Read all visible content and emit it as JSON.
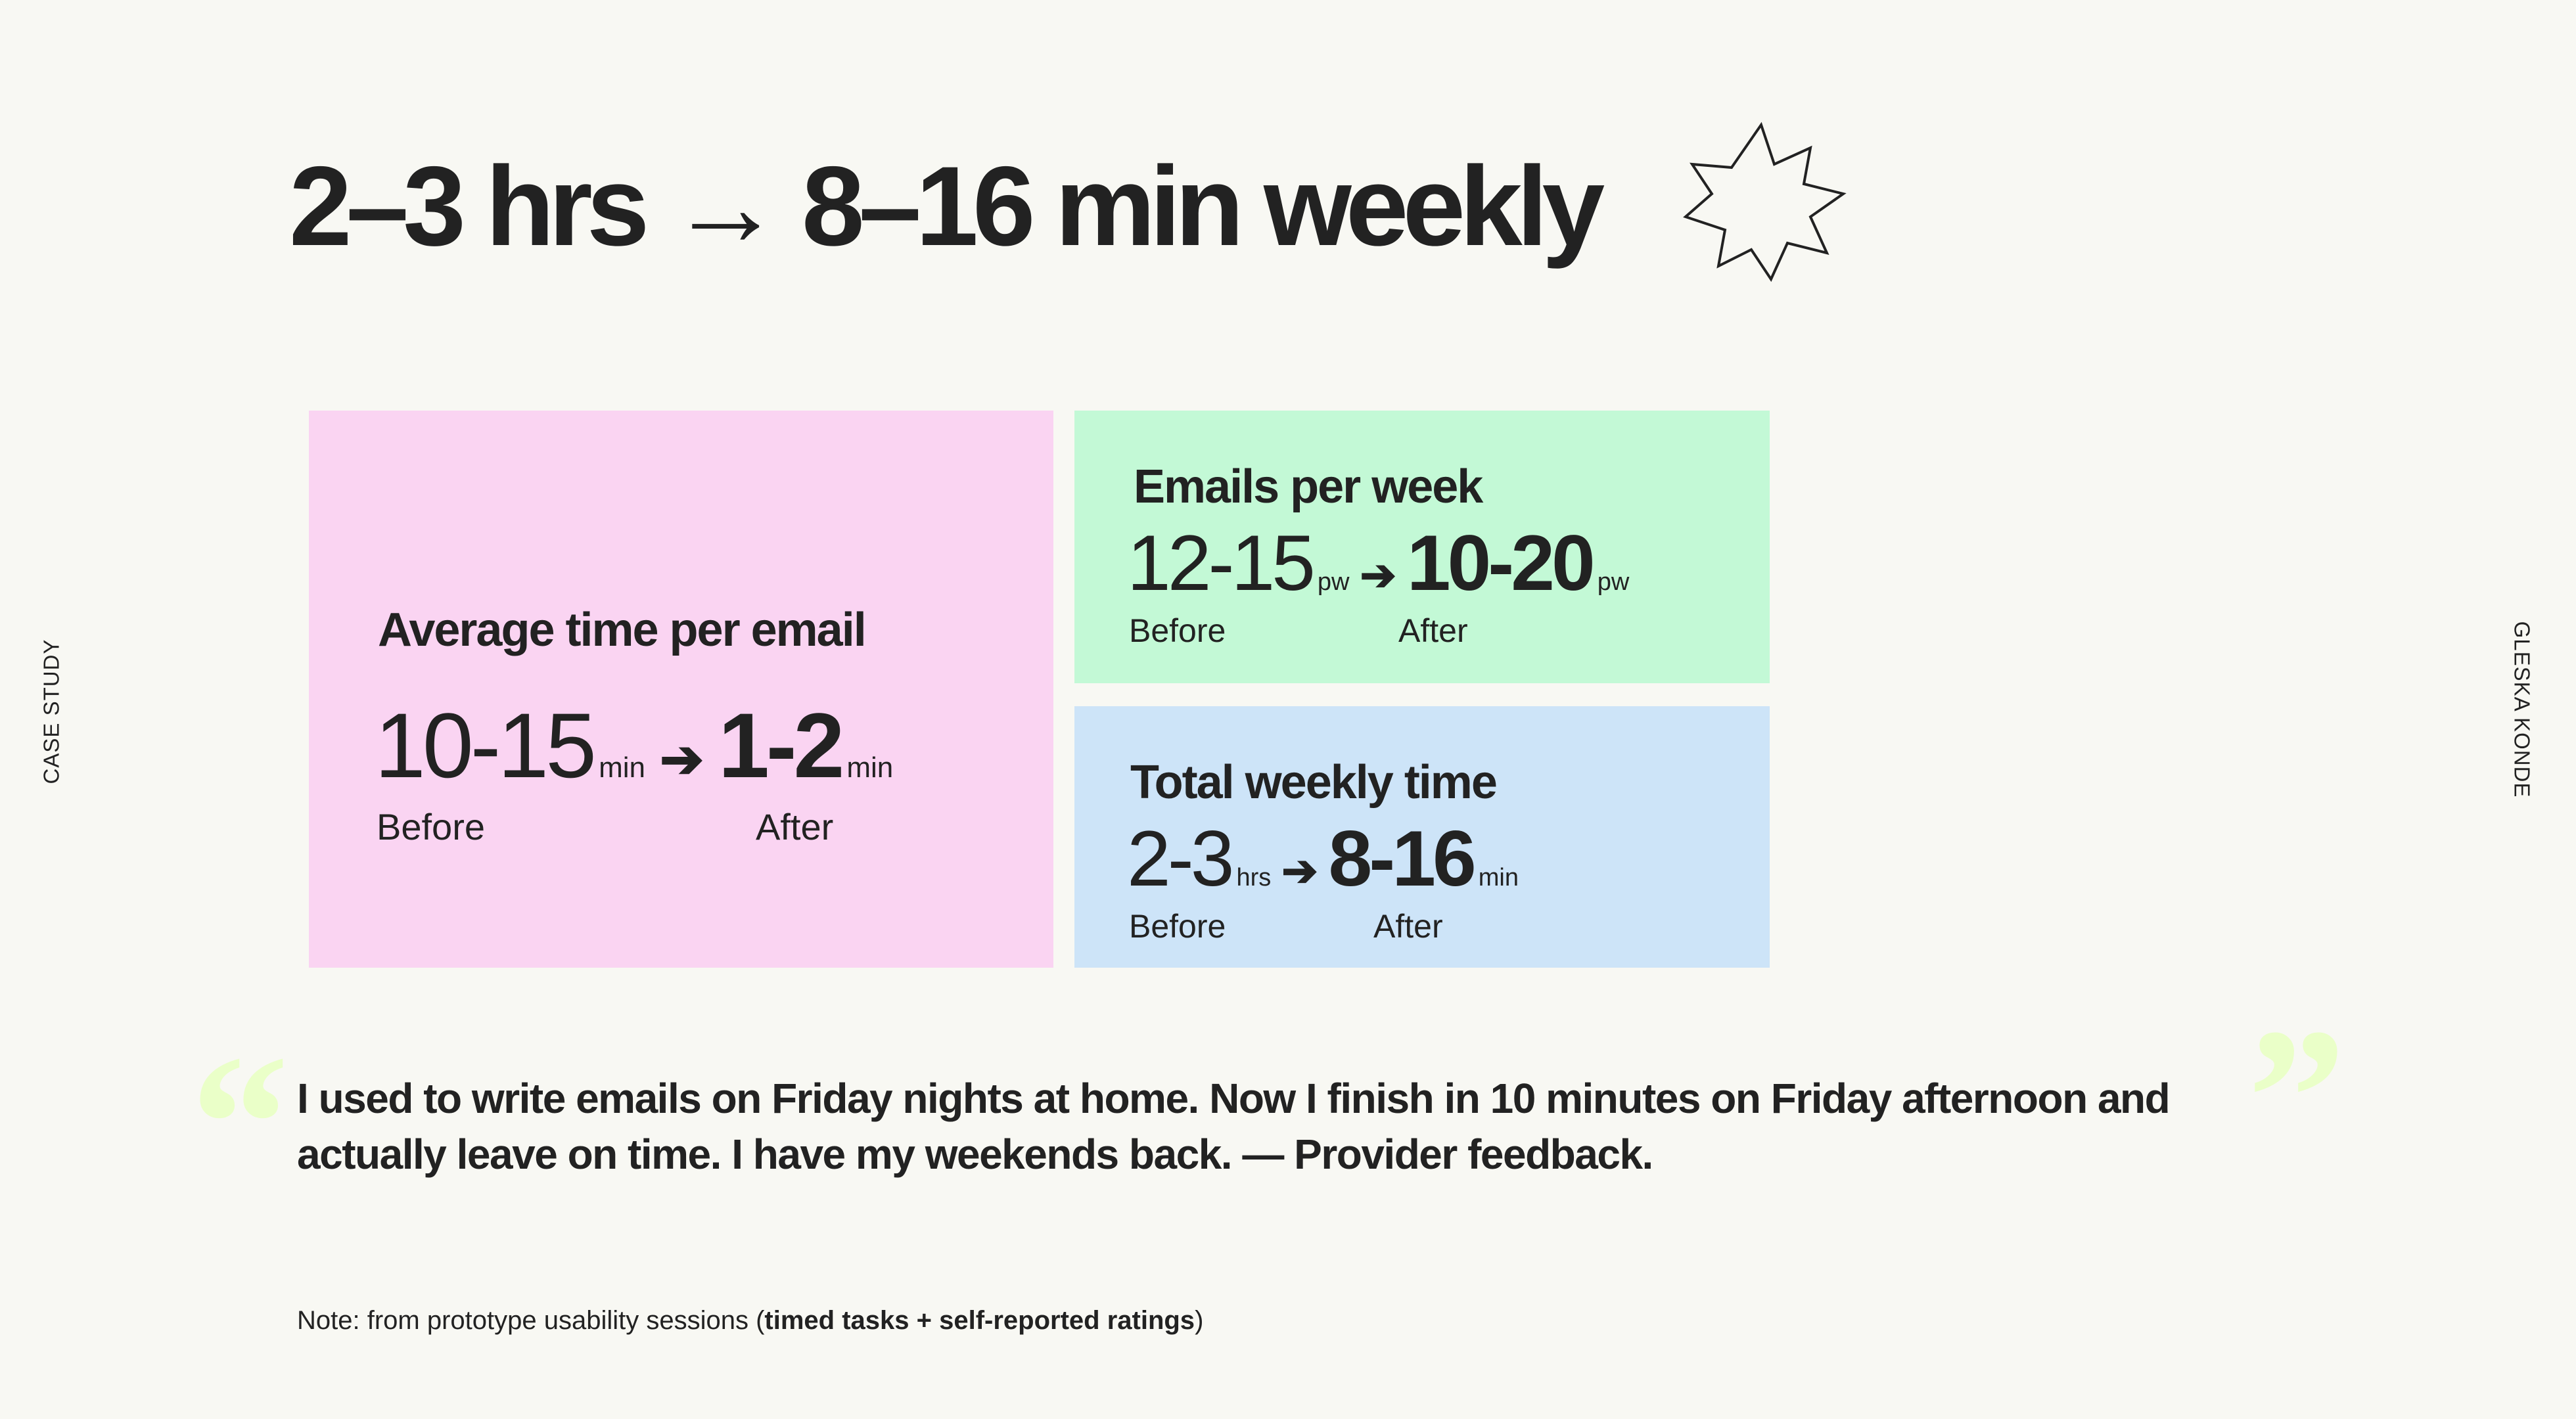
{
  "title": "2–3 hrs → 8–16 min weekly",
  "side_left": "CASE STUDY",
  "side_right": "GLESKA KONDE",
  "colors": {
    "pink": "#FAD4F2",
    "green": "#C3F9D6",
    "blue": "#CDE4F8",
    "quote_marks": "#EAFFC8",
    "text": "#222222"
  },
  "icons": {
    "title_decoration": "starburst-outline-icon",
    "arrow": "arrow-right-icon",
    "quotes": "quotation-mark-icon"
  },
  "cards": [
    {
      "title": "Average time per email",
      "before_value": "10-15",
      "before_unit": "min",
      "after_value": "1-2",
      "after_unit": "min",
      "before_label": "Before",
      "after_label": "After"
    },
    {
      "title": "Emails per week",
      "before_value": "12-15",
      "before_unit": "pw",
      "after_value": "10-20",
      "after_unit": "pw",
      "before_label": "Before",
      "after_label": "After"
    },
    {
      "title": "Total weekly time",
      "before_value": "2-3",
      "before_unit": "hrs",
      "after_value": "8-16",
      "after_unit": "min",
      "before_label": "Before",
      "after_label": "After"
    }
  ],
  "quote": {
    "open_mark": "“",
    "close_mark": "”",
    "text": "I used to write emails on Friday nights at home. Now I finish in 10 minutes on Friday afternoon and actually leave on time. I have my weekends back. — Provider feedback."
  },
  "note": {
    "prefix": "Note: from prototype usability sessions (",
    "bold": "timed tasks + self-reported ratings",
    "suffix": ")"
  }
}
